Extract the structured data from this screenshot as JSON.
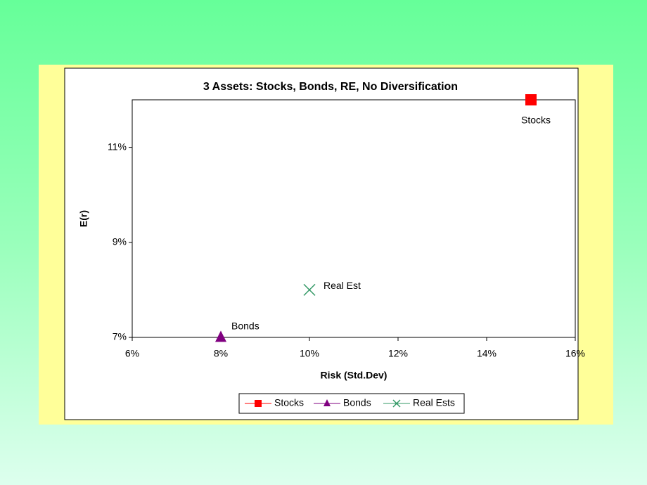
{
  "chart_data": {
    "type": "scatter",
    "title": "3 Assets: Stocks, Bonds, RE, No Diversification",
    "x_label": "Risk (Std.Dev)",
    "y_label": "E(r)",
    "xlim": [
      6,
      16
    ],
    "xticks": [
      {
        "value": 6,
        "label": "6%"
      },
      {
        "value": 8,
        "label": "8%"
      },
      {
        "value": 10,
        "label": "10%"
      },
      {
        "value": 12,
        "label": "12%"
      },
      {
        "value": 14,
        "label": "14%"
      },
      {
        "value": 16,
        "label": "16%"
      }
    ],
    "ylim": [
      7,
      12
    ],
    "yticks": [
      {
        "value": 7,
        "label": "7%"
      },
      {
        "value": 9,
        "label": "9%"
      },
      {
        "value": 11,
        "label": "11%"
      }
    ],
    "grid": false,
    "legend": "bottom",
    "series": [
      {
        "name": "Stocks",
        "color": "#ff0000",
        "marker": "square",
        "x": [
          15
        ],
        "values": [
          12
        ],
        "labels": [
          "Stocks"
        ]
      },
      {
        "name": "Bonds",
        "color": "#800080",
        "marker": "triangle",
        "x": [
          8
        ],
        "values": [
          7
        ],
        "labels": [
          "Bonds"
        ]
      },
      {
        "name": "Real Ests",
        "color": "#339966",
        "marker": "cross",
        "x": [
          10
        ],
        "values": [
          8
        ],
        "labels": [
          "Real Est"
        ]
      }
    ]
  }
}
